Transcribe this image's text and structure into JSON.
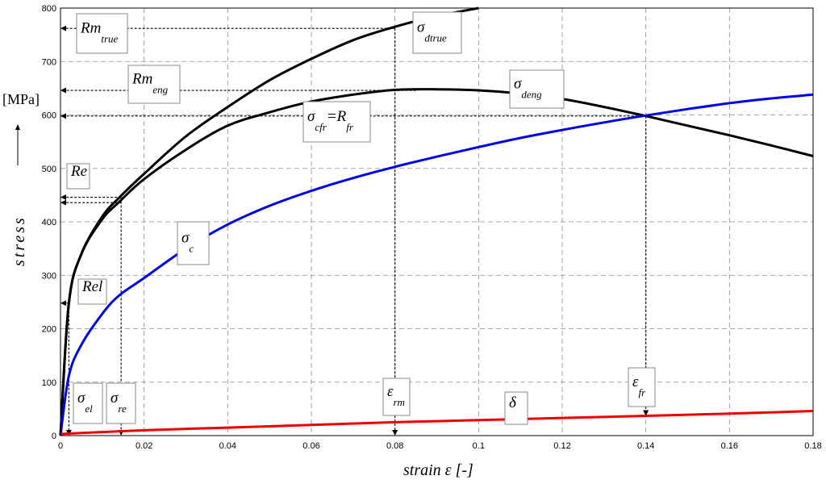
{
  "chart_data": {
    "type": "line",
    "title": "",
    "xlabel": "strain ε [-]",
    "ylabel": "stress",
    "yunit": "[MPa]",
    "xlim": [
      0,
      0.18
    ],
    "ylim": [
      0,
      800
    ],
    "xticks": [
      0,
      0.02,
      0.04,
      0.06,
      0.08,
      0.1,
      0.12,
      0.14,
      0.16,
      0.18
    ],
    "xtick_labels": [
      "0",
      "0.02",
      "0.04",
      "0.06",
      "0.08",
      "0.1",
      "0.12",
      "0.14",
      "0.16",
      "0.18"
    ],
    "yticks": [
      0,
      100,
      200,
      300,
      400,
      500,
      600,
      700,
      800
    ],
    "ytick_labels": [
      "0",
      "100",
      "200",
      "300",
      "400",
      "500",
      "600",
      "700",
      "800"
    ],
    "grid": true,
    "series": [
      {
        "name": "σdtrue",
        "color": "#000000",
        "x": [
          0,
          0.002,
          0.005,
          0.01,
          0.014,
          0.02,
          0.03,
          0.04,
          0.05,
          0.06,
          0.07,
          0.08,
          0.09,
          0.1
        ],
        "y": [
          0,
          248,
          340,
          410,
          445,
          490,
          560,
          615,
          665,
          705,
          740,
          765,
          785,
          800
        ]
      },
      {
        "name": "σdeng",
        "color": "#000000",
        "x": [
          0,
          0.002,
          0.005,
          0.01,
          0.014,
          0.02,
          0.03,
          0.04,
          0.05,
          0.06,
          0.07,
          0.08,
          0.09,
          0.1,
          0.11,
          0.12,
          0.13,
          0.14,
          0.15,
          0.16,
          0.17,
          0.18
        ],
        "y": [
          0,
          248,
          340,
          405,
          437,
          480,
          535,
          580,
          605,
          625,
          638,
          647,
          648,
          646,
          640,
          630,
          615,
          598,
          580,
          562,
          543,
          523
        ]
      },
      {
        "name": "σc",
        "color": "#0000ee",
        "x": [
          0,
          0.002,
          0.005,
          0.01,
          0.014,
          0.02,
          0.03,
          0.04,
          0.05,
          0.06,
          0.07,
          0.08,
          0.09,
          0.1,
          0.11,
          0.12,
          0.13,
          0.14,
          0.15,
          0.16,
          0.17,
          0.18
        ],
        "y": [
          0,
          112,
          170,
          228,
          262,
          295,
          350,
          395,
          430,
          458,
          482,
          503,
          522,
          540,
          557,
          572,
          586,
          599,
          611,
          622,
          631,
          638
        ]
      },
      {
        "name": "δ",
        "color": "#ee0000",
        "x": [
          0,
          0.02,
          0.04,
          0.06,
          0.08,
          0.1,
          0.12,
          0.14,
          0.16,
          0.18
        ],
        "y": [
          3,
          10,
          15,
          20,
          25,
          29,
          33,
          37,
          41,
          46
        ]
      }
    ],
    "reference_lines": [
      {
        "from": [
          0.08,
          762
        ],
        "to": [
          0,
          762
        ],
        "arrow": "left"
      },
      {
        "from": [
          0.08,
          762
        ],
        "to": [
          0.08,
          0
        ],
        "arrow": "down"
      },
      {
        "from": [
          0.085,
          646
        ],
        "to": [
          0,
          646
        ],
        "arrow": "left"
      },
      {
        "from": [
          0.14,
          598
        ],
        "to": [
          0,
          598
        ],
        "arrow": "left"
      },
      {
        "from": [
          0.14,
          598
        ],
        "to": [
          0.14,
          37
        ],
        "arrow": "down"
      },
      {
        "from": [
          0.0145,
          446
        ],
        "to": [
          0,
          446
        ],
        "arrow": "left"
      },
      {
        "from": [
          0.0145,
          436
        ],
        "to": [
          0,
          436
        ],
        "arrow": "left"
      },
      {
        "from": [
          0.0145,
          446
        ],
        "to": [
          0.0145,
          0
        ],
        "arrow": "down"
      },
      {
        "from": [
          0.002,
          248
        ],
        "to": [
          0,
          248
        ],
        "arrow": "left"
      },
      {
        "from": [
          0.002,
          248
        ],
        "to": [
          0.002,
          0
        ],
        "arrow": "down"
      }
    ],
    "annotations": [
      {
        "main": "Rm",
        "sub": "true"
      },
      {
        "main": "σ",
        "sub": "dtrue"
      },
      {
        "main": "Rm",
        "sub": "eng"
      },
      {
        "main": "σ",
        "sub": "deng"
      },
      {
        "main": "σ",
        "sub": "cfr",
        "mid": "=R",
        "sub2": "fr"
      },
      {
        "main": "Re",
        "sub": ""
      },
      {
        "main": "σ",
        "sub": "c"
      },
      {
        "main": "Rel",
        "sub": ""
      },
      {
        "main": "σ",
        "sub": "el"
      },
      {
        "main": "σ",
        "sub": "re"
      },
      {
        "main": "ε",
        "sub": "rm"
      },
      {
        "main": "δ",
        "sub": ""
      },
      {
        "main": "ε",
        "sub": "fr"
      }
    ]
  }
}
